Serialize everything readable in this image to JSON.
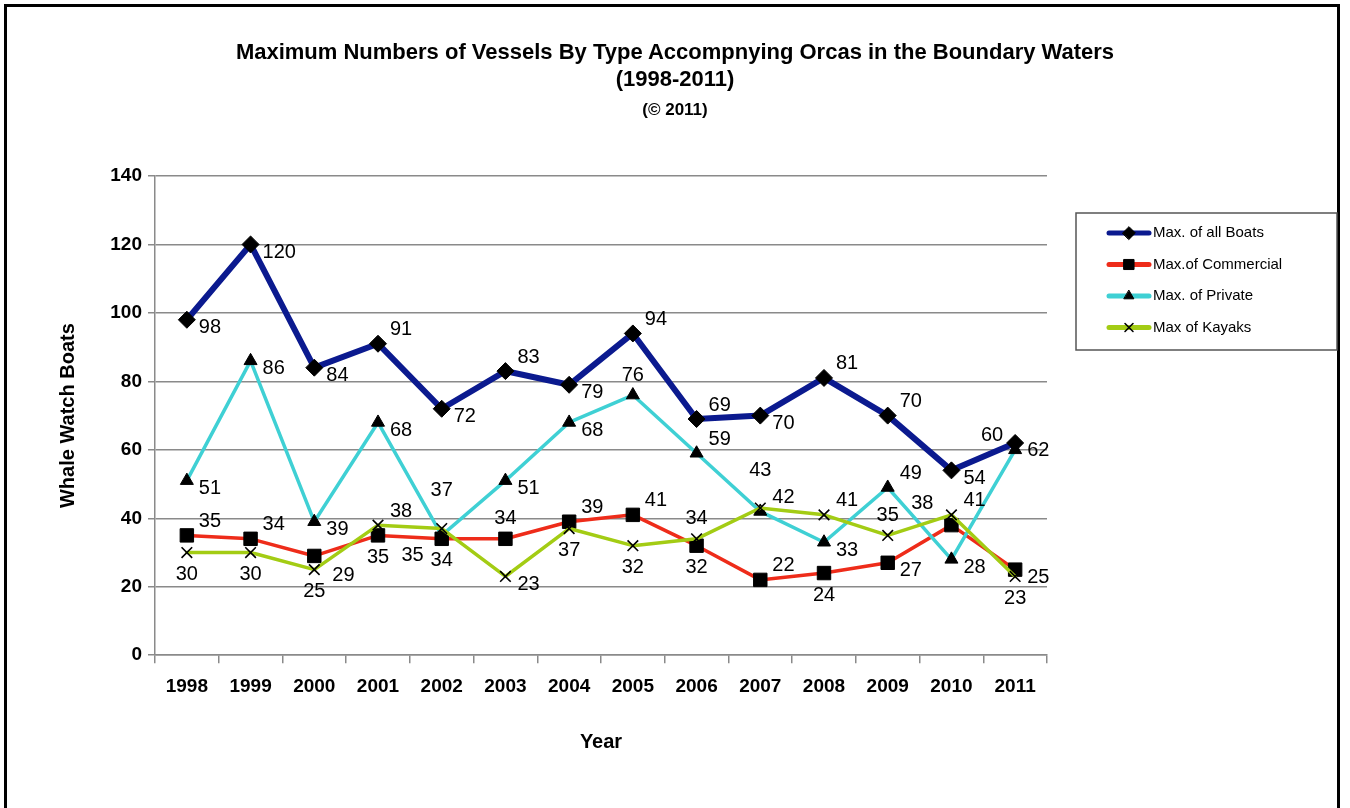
{
  "chart_data": {
    "type": "line",
    "title": "Maximum Numbers of Vessels By Type Accompnying Orcas in the Boundary Waters\n(1998-2011)",
    "subtitle": "(© 2011)",
    "xlabel": "Year",
    "ylabel": "Whale Watch Boats",
    "categories": [
      "1998",
      "1999",
      "2000",
      "2001",
      "2002",
      "2003",
      "2004",
      "2005",
      "2006",
      "2007",
      "2008",
      "2009",
      "2010",
      "2011"
    ],
    "series": [
      {
        "name": "Max. of all Boats",
        "color": "#0b1a8f",
        "marker": "diamond",
        "values": [
          98,
          120,
          84,
          91,
          72,
          83,
          79,
          94,
          69,
          70,
          81,
          70,
          54,
          62
        ]
      },
      {
        "name": "Max.of Commercial",
        "color": "#ee2c1a",
        "marker": "square",
        "values": [
          35,
          34,
          29,
          35,
          34,
          34,
          39,
          41,
          32,
          22,
          24,
          27,
          38,
          25
        ]
      },
      {
        "name": "Max. of Private",
        "color": "#3fd0d4",
        "marker": "triangle",
        "values": [
          51,
          86,
          39,
          68,
          35,
          51,
          68,
          76,
          59,
          42,
          33,
          49,
          28,
          60
        ]
      },
      {
        "name": "Max of Kayaks",
        "color": "#a3cc14",
        "marker": "cross",
        "values": [
          30,
          30,
          25,
          38,
          37,
          23,
          37,
          32,
          34,
          43,
          41,
          35,
          41,
          23
        ]
      }
    ],
    "ylim": [
      0,
      140
    ],
    "yticks": [
      0,
      20,
      40,
      60,
      80,
      100,
      120,
      140
    ],
    "grid": "y",
    "legend": "right",
    "data_labels": true
  }
}
